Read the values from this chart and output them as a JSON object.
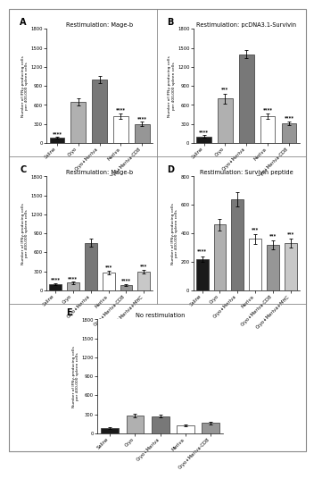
{
  "panels": {
    "A": {
      "title": "Restimulation: Mage-b",
      "categories": [
        "Saline",
        "Cryo",
        "Cryo+Meriva",
        "Meriva",
        "Cryo+Meriva-CD8"
      ],
      "values": [
        80,
        650,
        1000,
        420,
        300
      ],
      "errors": [
        15,
        60,
        60,
        40,
        30
      ],
      "colors": [
        "#1a1a1a",
        "#b0b0b0",
        "#787878",
        "#ffffff",
        "#969696"
      ],
      "sig": [
        "****",
        "",
        "",
        "****",
        "****"
      ],
      "sig_y": [
        115,
        0,
        0,
        490,
        350
      ],
      "ylim": [
        0,
        1800
      ],
      "yticks": [
        0,
        300,
        600,
        900,
        1200,
        1500,
        1800
      ]
    },
    "B": {
      "title": "Restimulation: pcDNA3.1-Survivin",
      "categories": [
        "Saline",
        "Cryo",
        "Cryo+Meriva",
        "Meriva",
        "Cryo+Meriva-CD8"
      ],
      "values": [
        100,
        700,
        1400,
        420,
        310
      ],
      "errors": [
        20,
        80,
        60,
        40,
        30
      ],
      "colors": [
        "#1a1a1a",
        "#b0b0b0",
        "#787878",
        "#ffffff",
        "#969696"
      ],
      "sig": [
        "****",
        "***",
        "",
        "****",
        "****"
      ],
      "sig_y": [
        145,
        820,
        0,
        490,
        365
      ],
      "ylim": [
        0,
        1800
      ],
      "yticks": [
        0,
        300,
        600,
        900,
        1200,
        1500,
        1800
      ]
    },
    "C": {
      "title": "Restimulation: Mage-b",
      "categories": [
        "Saline",
        "Cryo",
        "Cryo+Meriva",
        "Meriva",
        "Cryo+Meriva-CD8",
        "Cryo+Meriva+MHC"
      ],
      "values": [
        100,
        120,
        750,
        280,
        80,
        290
      ],
      "errors": [
        15,
        20,
        60,
        30,
        15,
        30
      ],
      "colors": [
        "#1a1a1a",
        "#b0b0b0",
        "#787878",
        "#ffffff",
        "#969696",
        "#c8c8c8"
      ],
      "sig": [
        "****",
        "****",
        "",
        "***",
        "****",
        "***"
      ],
      "sig_y": [
        145,
        160,
        0,
        335,
        120,
        345
      ],
      "ylim": [
        0,
        1800
      ],
      "yticks": [
        0,
        300,
        600,
        900,
        1200,
        1500,
        1800
      ]
    },
    "D": {
      "title": "Restimulation: Survivin peptide",
      "categories": [
        "Saline",
        "Cryo",
        "Cryo+Meriva",
        "Meriva",
        "Cryo+Meriva-CD8",
        "Cryo+Meriva+MHC"
      ],
      "values": [
        220,
        460,
        640,
        360,
        320,
        330
      ],
      "errors": [
        20,
        40,
        50,
        35,
        30,
        30
      ],
      "colors": [
        "#1a1a1a",
        "#b0b0b0",
        "#787878",
        "#ffffff",
        "#969696",
        "#c8c8c8"
      ],
      "sig": [
        "****",
        "",
        "",
        "***",
        "***",
        "***"
      ],
      "sig_y": [
        265,
        0,
        0,
        415,
        370,
        380
      ],
      "ylim": [
        0,
        800
      ],
      "yticks": [
        0,
        200,
        400,
        600,
        800
      ]
    },
    "E": {
      "title": "No restimulation",
      "categories": [
        "Saline",
        "Cryo",
        "Cryo+Meriva",
        "Meriva",
        "Cryo+Meriva-CD8"
      ],
      "values": [
        80,
        280,
        270,
        120,
        160
      ],
      "errors": [
        10,
        25,
        25,
        15,
        20
      ],
      "colors": [
        "#1a1a1a",
        "#b0b0b0",
        "#787878",
        "#ffffff",
        "#969696"
      ],
      "sig": [
        "",
        "",
        "",
        "",
        ""
      ],
      "sig_y": [
        0,
        0,
        0,
        0,
        0
      ],
      "ylim": [
        0,
        1800
      ],
      "yticks": [
        0,
        300,
        600,
        900,
        1200,
        1500,
        1800
      ]
    }
  },
  "ylabel": "Number of IFNγ-producing cells\nper 400,000 spleen cells",
  "background_color": "#ffffff",
  "bar_edge_color": "#333333",
  "bar_edge_width": 0.5,
  "outer_box_color": "#888888"
}
